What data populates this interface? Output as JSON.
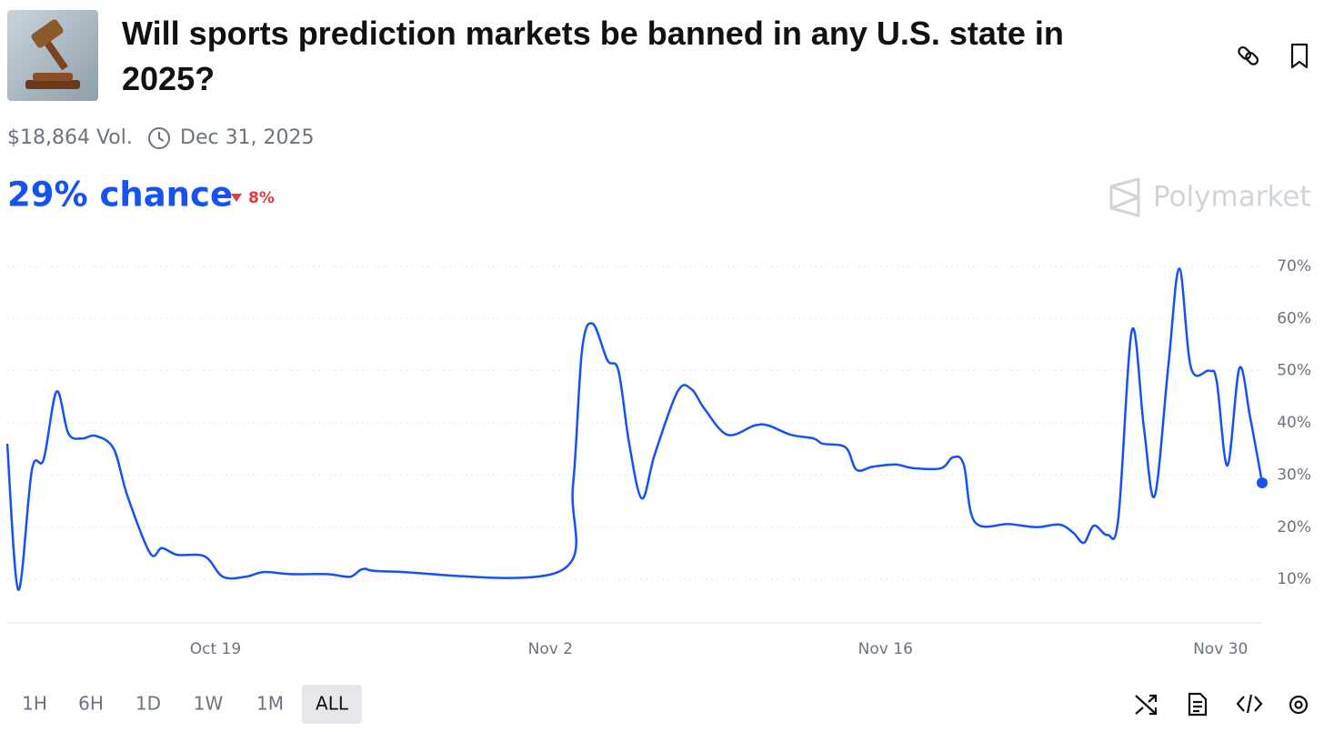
{
  "header": {
    "title": "Will sports prediction markets be banned in any U.S. state in 2025?",
    "volume": "$18,864 Vol.",
    "end_date": "Dec 31, 2025",
    "chance": "29% chance",
    "change": "8%",
    "brand": "Polymarket"
  },
  "chart_data": {
    "type": "line",
    "x": [
      0.3,
      0.76,
      1.33,
      1.82,
      2.36,
      2.85,
      3.42,
      3.99,
      4.75,
      5.32,
      6.27,
      6.76,
      7.41,
      8.55,
      9.31,
      10.26,
      11.02,
      12.16,
      13.68,
      14.63,
      15.2,
      16.34,
      23.37,
      23.94,
      24.32,
      24.77,
      25.38,
      25.84,
      26.29,
      26.82,
      27.36,
      28.31,
      28.88,
      29.45,
      30.4,
      31.53,
      32.1,
      33.05,
      34.0,
      34.38,
      35.33,
      35.79,
      36.47,
      37.42,
      38.18,
      39.32,
      39.82,
      40.27,
      40.73,
      42.17,
      43.31,
      44.26,
      44.83,
      45.29,
      45.71,
      46.28,
      46.73,
      47.3,
      47.8,
      48.25,
      48.82,
      49.28,
      49.77,
      50.53,
      50.84,
      51.29,
      51.79,
      52.24,
      52.74
    ],
    "series": [
      {
        "color": "#1652f0",
        "values": [
          36,
          8,
          31,
          33,
          46,
          38,
          37,
          37.5,
          35,
          26,
          15,
          16,
          14.7,
          14.4,
          10.5,
          10.5,
          11.4,
          11,
          11,
          10.5,
          12,
          11.5,
          11.5,
          28,
          54,
          59,
          52,
          50,
          36,
          25.5,
          34,
          46,
          46.5,
          42.6,
          37.7,
          39.5,
          39.5,
          37.7,
          37,
          36,
          35.3,
          31,
          31.6,
          32,
          31.3,
          31.3,
          33.4,
          32,
          21,
          20.6,
          20,
          20.5,
          19,
          17,
          20.3,
          18.5,
          21.7,
          57.8,
          39,
          26,
          51,
          69.6,
          50.5,
          50,
          48,
          31.8,
          50.5,
          41,
          28.5
        ]
      }
    ],
    "xlim": [
      0.3,
      52.74
    ],
    "xticks": [
      {
        "value": 9,
        "label": "Oct 19"
      },
      {
        "value": 23,
        "label": "Nov 2"
      },
      {
        "value": 37,
        "label": "Nov 16"
      },
      {
        "value": 51,
        "label": "Nov 30"
      }
    ],
    "ylim": [
      2,
      74
    ],
    "yticks": [
      {
        "value": 10,
        "label": "10%"
      },
      {
        "value": 20,
        "label": "20%"
      },
      {
        "value": 30,
        "label": "30%"
      },
      {
        "value": 40,
        "label": "40%"
      },
      {
        "value": 50,
        "label": "50%"
      },
      {
        "value": 60,
        "label": "60%"
      },
      {
        "value": 70,
        "label": "70%"
      }
    ],
    "grid": true
  },
  "ranges": {
    "options": [
      "1H",
      "6H",
      "1D",
      "1W",
      "1M",
      "ALL"
    ],
    "active": 5
  }
}
